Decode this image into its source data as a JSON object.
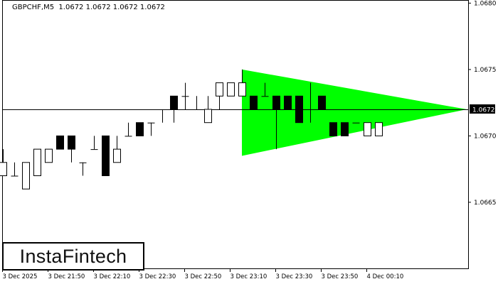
{
  "header": {
    "symbol": "GBPCHF,M5",
    "ohlc": "1.0672 1.0672 1.0672 1.0672"
  },
  "logo": "InstaFintech",
  "colors": {
    "pattern": "#00ff00",
    "bull_body": "#ffffff",
    "bear_body": "#000000",
    "line": "#000000"
  },
  "price_axis": {
    "labels": [
      "1.0680",
      "1.0675",
      "1.0670",
      "1.0665"
    ],
    "current_price": "1.0672"
  },
  "time_axis": {
    "labels": [
      "3 Dec 2025",
      "3 Dec 21:50",
      "3 Dec 22:10",
      "3 Dec 22:30",
      "3 Dec 22:50",
      "3 Dec 23:10",
      "3 Dec 23:30",
      "3 Dec 23:50",
      "4 Dec 00:10"
    ]
  },
  "pattern": {
    "type": "bullish symmetrical triangle",
    "top_left_price": 1.0675,
    "bottom_left_price": 1.06685,
    "apex_price": 1.0672
  },
  "candles": [
    [
      1.0667,
      1.0669,
      1.0667,
      1.0668
    ],
    [
      1.0667,
      1.0668,
      1.0667,
      1.0667
    ],
    [
      1.0666,
      1.0668,
      1.0666,
      1.0668
    ],
    [
      1.0667,
      1.0669,
      1.0667,
      1.0669
    ],
    [
      1.0668,
      1.0669,
      1.0668,
      1.0669
    ],
    [
      1.067,
      1.067,
      1.0669,
      1.0669
    ],
    [
      1.067,
      1.067,
      1.0668,
      1.0669
    ],
    [
      1.0668,
      1.0668,
      1.0667,
      1.0668
    ],
    [
      1.0669,
      1.067,
      1.0669,
      1.0669
    ],
    [
      1.067,
      1.067,
      1.0667,
      1.0667
    ],
    [
      1.0668,
      1.067,
      1.0668,
      1.0669
    ],
    [
      1.067,
      1.0671,
      1.067,
      1.067
    ],
    [
      1.0671,
      1.0671,
      1.067,
      1.067
    ],
    [
      1.0671,
      1.0671,
      1.067,
      1.0671
    ],
    [
      1.0672,
      1.0672,
      1.0671,
      1.0672
    ],
    [
      1.0673,
      1.0673,
      1.0671,
      1.0672
    ],
    [
      1.0673,
      1.0674,
      1.0672,
      1.0673
    ],
    [
      1.0672,
      1.0673,
      1.0672,
      1.0672
    ],
    [
      1.0671,
      1.0673,
      1.0671,
      1.0672
    ],
    [
      1.0673,
      1.0674,
      1.0672,
      1.0674
    ],
    [
      1.0673,
      1.0674,
      1.0673,
      1.0674
    ],
    [
      1.0673,
      1.0675,
      1.0673,
      1.0674
    ],
    [
      1.0673,
      1.0673,
      1.0672,
      1.0672
    ],
    [
      1.0673,
      1.0674,
      1.0673,
      1.0673
    ],
    [
      1.0673,
      1.0673,
      1.0669,
      1.0672
    ],
    [
      1.0673,
      1.0673,
      1.0672,
      1.0672
    ],
    [
      1.0673,
      1.0673,
      1.0671,
      1.0671
    ],
    [
      1.0672,
      1.0674,
      1.0671,
      1.0672
    ],
    [
      1.0673,
      1.0673,
      1.0672,
      1.0672
    ],
    [
      1.0671,
      1.0671,
      1.067,
      1.067
    ],
    [
      1.0671,
      1.0671,
      1.067,
      1.067
    ],
    [
      1.0671,
      1.0671,
      1.0671,
      1.0671
    ],
    [
      1.067,
      1.0671,
      1.067,
      1.0671
    ],
    [
      1.067,
      1.0671,
      1.067,
      1.0671
    ]
  ]
}
